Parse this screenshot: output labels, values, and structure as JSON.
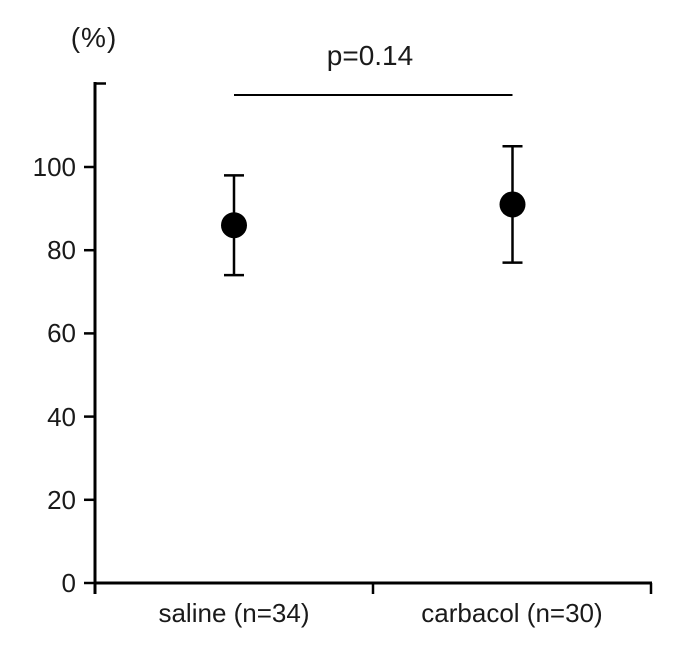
{
  "figure": {
    "background": "#ffffff",
    "ink_color": "#000000",
    "text_color": "#1a1a1a"
  },
  "chart_data": {
    "type": "scatter",
    "title": "",
    "xlabel": "",
    "ylabel": "(%)",
    "categories": [
      "saline (n=34)",
      "carbacol (n=30)"
    ],
    "series": [
      {
        "name": "saline",
        "n": 34,
        "mean": 86,
        "error": 12,
        "upper": 98,
        "lower": 74
      },
      {
        "name": "carbacol",
        "n": 30,
        "mean": 91,
        "error": 14,
        "upper": 105,
        "lower": 77
      }
    ],
    "yticks": [
      0,
      20,
      40,
      60,
      80,
      100
    ],
    "ylim": [
      0,
      120
    ],
    "grid": false,
    "legend": "none",
    "marker": "filled-circle",
    "annotation": {
      "label": "p=0.14",
      "connects": [
        "saline (n=34)",
        "carbacol (n=30)"
      ]
    }
  }
}
